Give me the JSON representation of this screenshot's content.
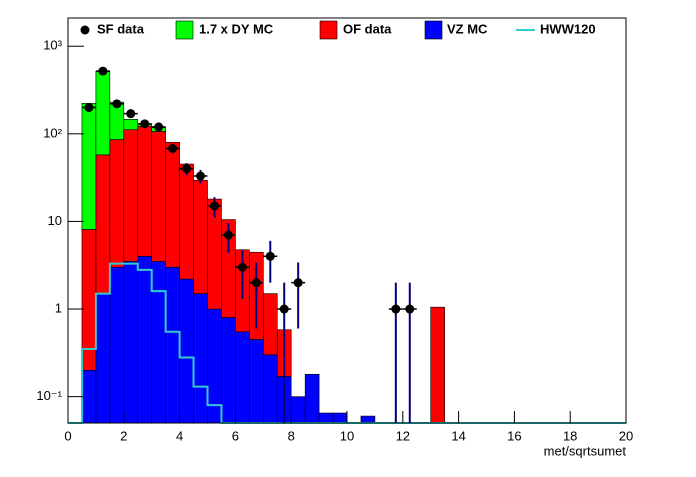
{
  "chart_data": {
    "type": "stacked_histogram",
    "x_label": "met/sqrtsumet",
    "log_y": true,
    "xlim": [
      0,
      20
    ],
    "xticks": [
      0,
      2,
      4,
      6,
      8,
      10,
      12,
      14,
      16,
      18,
      20
    ],
    "ylim": [
      0.05,
      2100
    ],
    "yticks": [
      {
        "value": 0.1,
        "label": "10⁻¹"
      },
      1,
      10,
      {
        "value": 100,
        "label": "10²"
      },
      {
        "value": 1000,
        "label": "10³"
      }
    ],
    "bins": [
      0,
      0.5,
      1,
      1.5,
      2,
      2.5,
      3,
      3.5,
      4,
      4.5,
      5,
      5.5,
      6,
      6.5,
      7,
      7.5,
      8,
      8.5,
      9,
      9.5,
      10,
      10.5,
      11,
      11.5,
      12,
      12.5,
      13,
      13.5,
      14,
      14.5,
      15,
      15.5,
      16,
      16.5,
      17,
      17.5,
      18,
      18.5,
      19,
      19.5,
      20
    ],
    "series": [
      {
        "name": "VZ MC",
        "color": "#0000ff",
        "values": [
          0,
          0.2,
          1.5,
          3,
          3.5,
          4,
          3.5,
          3,
          2.2,
          1.5,
          1,
          0.8,
          0.55,
          0.45,
          0.3,
          0.17,
          0.1,
          0.18,
          0.065,
          0.065,
          0,
          0.06,
          0,
          0,
          0,
          0,
          0,
          0,
          0,
          0,
          0,
          0,
          0,
          0,
          0,
          0,
          0,
          0,
          0,
          0
        ]
      },
      {
        "name": "OF data",
        "color": "#ff0000",
        "values": [
          0,
          7.9,
          56,
          83,
          108,
          118,
          103,
          77,
          43,
          28,
          17,
          9.7,
          4.2,
          4,
          1.2,
          0.41,
          0,
          0,
          0,
          0,
          0,
          0,
          0,
          0,
          0,
          0,
          1.05,
          0,
          0,
          0,
          0,
          0,
          0,
          0,
          0,
          0,
          0,
          0,
          0,
          0
        ]
      },
      {
        "name": "1.7 x DY MC",
        "color": "#00ff00",
        "values": [
          0,
          215,
          460,
          144,
          35,
          6,
          11,
          0,
          0,
          0,
          0,
          0,
          0,
          0,
          0,
          0,
          0,
          0,
          0,
          0,
          0,
          0,
          0,
          0,
          0,
          0,
          0,
          0,
          0,
          0,
          0,
          0,
          0,
          0,
          0,
          0,
          0,
          0,
          0,
          0
        ]
      }
    ],
    "line": {
      "name": "HWW120",
      "color": "#33cccc",
      "values": [
        0,
        0.35,
        1.5,
        3.3,
        3.3,
        2.8,
        1.6,
        0.55,
        0.28,
        0.13,
        0.08,
        0,
        0,
        0,
        0,
        0,
        0,
        0,
        0,
        0,
        0,
        0,
        0,
        0,
        0,
        0,
        0,
        0,
        0,
        0,
        0,
        0,
        0,
        0,
        0,
        0,
        0,
        0,
        0,
        0
      ]
    },
    "points": {
      "name": "SF data",
      "color": "#000000",
      "x": [
        0.75,
        1.25,
        1.75,
        2.25,
        2.75,
        3.25,
        3.75,
        4.25,
        4.75,
        5.25,
        5.75,
        6.25,
        6.75,
        7.25,
        7.75,
        8.25,
        11.75,
        12.25
      ],
      "values": [
        200,
        520,
        220,
        170,
        130,
        120,
        68,
        40,
        33,
        15,
        7,
        3,
        2,
        4,
        1,
        2,
        1,
        1
      ],
      "errors": [
        14,
        23,
        15,
        13,
        11,
        11,
        8,
        6.3,
        5.7,
        3.9,
        2.6,
        1.7,
        1.4,
        2,
        1,
        1.4,
        1,
        1
      ],
      "xerr": 0.25
    }
  }
}
